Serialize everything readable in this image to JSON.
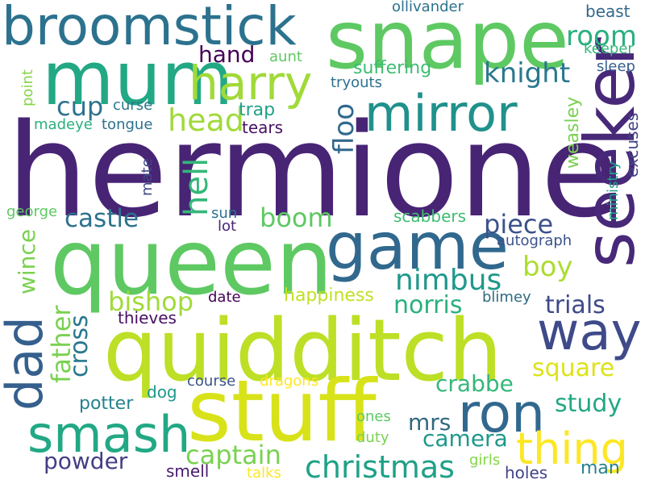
{
  "words": [
    {
      "text": "hermione",
      "color": "#482475"
    },
    {
      "text": "quidditch",
      "color": "#bddf26"
    },
    {
      "text": "queen",
      "color": "#5ec962"
    },
    {
      "text": "stuff",
      "color": "#d8e219"
    },
    {
      "text": "snape",
      "color": "#5ec962"
    },
    {
      "text": "mum",
      "color": "#22a884"
    },
    {
      "text": "broomstick",
      "color": "#2c728e"
    },
    {
      "text": "seeker",
      "color": "#482878"
    },
    {
      "text": "game",
      "color": "#31688e"
    },
    {
      "text": "mirror",
      "color": "#21918c"
    },
    {
      "text": "harry",
      "color": "#a0da39"
    },
    {
      "text": "way",
      "color": "#3e4a89"
    },
    {
      "text": "dad",
      "color": "#35608d"
    },
    {
      "text": "ron",
      "color": "#31688e"
    },
    {
      "text": "smash",
      "color": "#22a884"
    },
    {
      "text": "thing",
      "color": "#fde725"
    },
    {
      "text": "christmas",
      "color": "#1fa187"
    },
    {
      "text": "head",
      "color": "#a0da39"
    },
    {
      "text": "knight",
      "color": "#2a788e"
    },
    {
      "text": "room",
      "color": "#2ab07f"
    },
    {
      "text": "castle",
      "color": "#2c728e"
    },
    {
      "text": "hell",
      "color": "#35b779"
    },
    {
      "text": "floo",
      "color": "#31688e"
    },
    {
      "text": "boom",
      "color": "#5ec962"
    },
    {
      "text": "piece",
      "color": "#3b528b"
    },
    {
      "text": "nimbus",
      "color": "#1f988b"
    },
    {
      "text": "boy",
      "color": "#addc30"
    },
    {
      "text": "bishop",
      "color": "#a0da39"
    },
    {
      "text": "norris",
      "color": "#2ab07f"
    },
    {
      "text": "trials",
      "color": "#3e4a89"
    },
    {
      "text": "father",
      "color": "#7ad151"
    },
    {
      "text": "cross",
      "color": "#2a788e"
    },
    {
      "text": "wince",
      "color": "#7ad151"
    },
    {
      "text": "square",
      "color": "#dde318"
    },
    {
      "text": "crabbe",
      "color": "#35b779"
    },
    {
      "text": "study",
      "color": "#22a884"
    },
    {
      "text": "captain",
      "color": "#7ad151"
    },
    {
      "text": "camera",
      "color": "#1f988b"
    },
    {
      "text": "mrs",
      "color": "#30697e"
    },
    {
      "text": "powder",
      "color": "#433e85"
    },
    {
      "text": "cup",
      "color": "#2c728e"
    },
    {
      "text": "hand",
      "color": "#440154"
    },
    {
      "text": "suffering",
      "color": "#3fbc73"
    },
    {
      "text": "trap",
      "color": "#1fa187"
    },
    {
      "text": "tears",
      "color": "#471063"
    },
    {
      "text": "curse",
      "color": "#2a788e"
    },
    {
      "text": "madeye",
      "color": "#2ab07f"
    },
    {
      "text": "tongue",
      "color": "#2c728e"
    },
    {
      "text": "aunt",
      "color": "#5ec962"
    },
    {
      "text": "tryouts",
      "color": "#2c728e"
    },
    {
      "text": "ollivander",
      "color": "#2c728e"
    },
    {
      "text": "beast",
      "color": "#31688e"
    },
    {
      "text": "keeper",
      "color": "#35b779"
    },
    {
      "text": "sleep",
      "color": "#355f8d"
    },
    {
      "text": "weasley",
      "color": "#7ad151"
    },
    {
      "text": "excuses",
      "color": "#414487"
    },
    {
      "text": "ministry",
      "color": "#1fa187"
    },
    {
      "text": "point",
      "color": "#86d549"
    },
    {
      "text": "mate",
      "color": "#3e4a89"
    },
    {
      "text": "george",
      "color": "#5ec962"
    },
    {
      "text": "sun",
      "color": "#2c728e"
    },
    {
      "text": "lot",
      "color": "#482475"
    },
    {
      "text": "scabbers",
      "color": "#3fbc73"
    },
    {
      "text": "autograph",
      "color": "#3b528b"
    },
    {
      "text": "happiness",
      "color": "#c2df23"
    },
    {
      "text": "date",
      "color": "#440154"
    },
    {
      "text": "blimey",
      "color": "#30697e"
    },
    {
      "text": "thieves",
      "color": "#471063"
    },
    {
      "text": "course",
      "color": "#3b528b"
    },
    {
      "text": "dragons",
      "color": "#fde725"
    },
    {
      "text": "dog",
      "color": "#1f988b"
    },
    {
      "text": "potter",
      "color": "#26828e"
    },
    {
      "text": "ones",
      "color": "#5ec962"
    },
    {
      "text": "duty",
      "color": "#7ad151"
    },
    {
      "text": "smell",
      "color": "#481a6c"
    },
    {
      "text": "talks",
      "color": "#fde725"
    },
    {
      "text": "girls",
      "color": "#86d549"
    },
    {
      "text": "holes",
      "color": "#414487"
    },
    {
      "text": "man",
      "color": "#26828e"
    }
  ]
}
